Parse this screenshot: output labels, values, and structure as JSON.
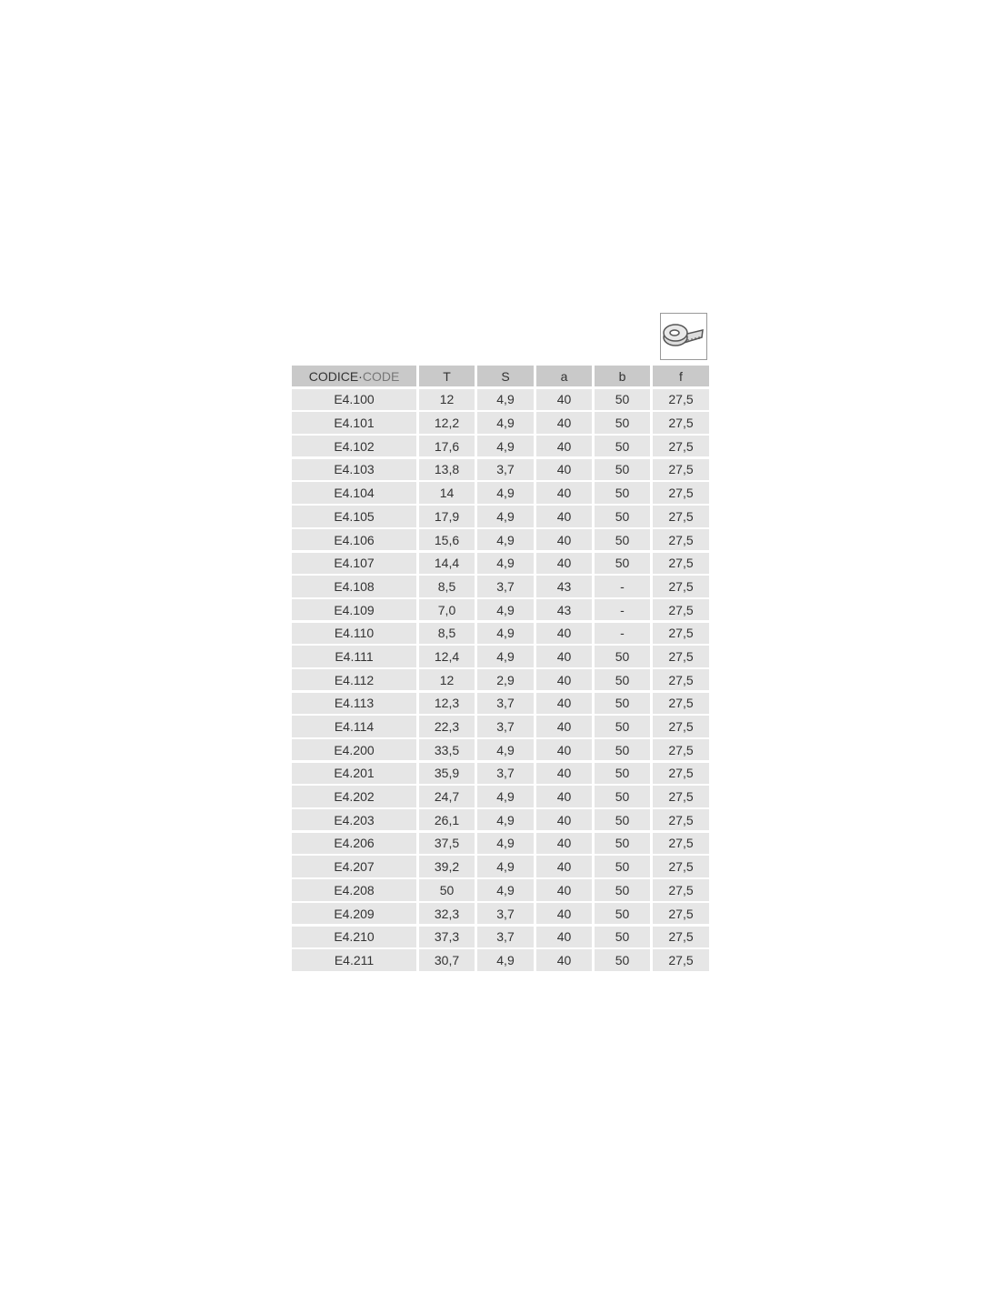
{
  "icon": "measuring-tape-icon",
  "header": {
    "code_it": "CODICE",
    "separator": " · ",
    "code_en": "CODE",
    "columns": [
      "T",
      "S",
      "a",
      "b",
      "f"
    ]
  },
  "rows": [
    [
      "E4.100",
      "12",
      "4,9",
      "40",
      "50",
      "27,5"
    ],
    [
      "E4.101",
      "12,2",
      "4,9",
      "40",
      "50",
      "27,5"
    ],
    [
      "E4.102",
      "17,6",
      "4,9",
      "40",
      "50",
      "27,5"
    ],
    [
      "E4.103",
      "13,8",
      "3,7",
      "40",
      "50",
      "27,5"
    ],
    [
      "E4.104",
      "14",
      "4,9",
      "40",
      "50",
      "27,5"
    ],
    [
      "E4.105",
      "17,9",
      "4,9",
      "40",
      "50",
      "27,5"
    ],
    [
      "E4.106",
      "15,6",
      "4,9",
      "40",
      "50",
      "27,5"
    ],
    [
      "E4.107",
      "14,4",
      "4,9",
      "40",
      "50",
      "27,5"
    ],
    [
      "E4.108",
      "8,5",
      "3,7",
      "43",
      "-",
      "27,5"
    ],
    [
      "E4.109",
      "7,0",
      "4,9",
      "43",
      "-",
      "27,5"
    ],
    [
      "E4.110",
      "8,5",
      "4,9",
      "40",
      "-",
      "27,5"
    ],
    [
      "E4.111",
      "12,4",
      "4,9",
      "40",
      "50",
      "27,5"
    ],
    [
      "E4.112",
      "12",
      "2,9",
      "40",
      "50",
      "27,5"
    ],
    [
      "E4.113",
      "12,3",
      "3,7",
      "40",
      "50",
      "27,5"
    ],
    [
      "E4.114",
      "22,3",
      "3,7",
      "40",
      "50",
      "27,5"
    ],
    [
      "E4.200",
      "33,5",
      "4,9",
      "40",
      "50",
      "27,5"
    ],
    [
      "E4.201",
      "35,9",
      "3,7",
      "40",
      "50",
      "27,5"
    ],
    [
      "E4.202",
      "24,7",
      "4,9",
      "40",
      "50",
      "27,5"
    ],
    [
      "E4.203",
      "26,1",
      "4,9",
      "40",
      "50",
      "27,5"
    ],
    [
      "E4.206",
      "37,5",
      "4,9",
      "40",
      "50",
      "27,5"
    ],
    [
      "E4.207",
      "39,2",
      "4,9",
      "40",
      "50",
      "27,5"
    ],
    [
      "E4.208",
      "50",
      "4,9",
      "40",
      "50",
      "27,5"
    ],
    [
      "E4.209",
      "32,3",
      "3,7",
      "40",
      "50",
      "27,5"
    ],
    [
      "E4.210",
      "37,3",
      "3,7",
      "40",
      "50",
      "27,5"
    ],
    [
      "E4.211",
      "30,7",
      "4,9",
      "40",
      "50",
      "27,5"
    ]
  ]
}
